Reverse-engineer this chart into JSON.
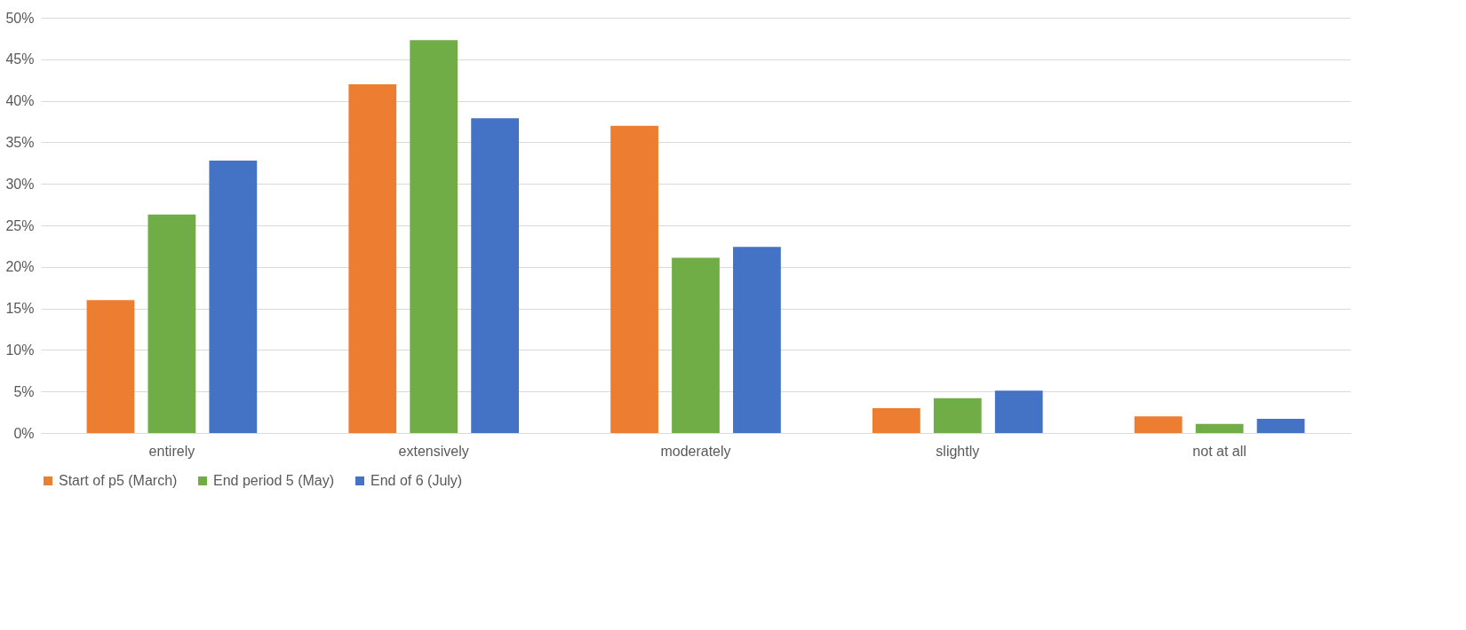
{
  "chart_data": {
    "type": "bar",
    "categories": [
      "entirely",
      "extensively",
      "moderately",
      "slightly",
      "not at all"
    ],
    "series": [
      {
        "name": "Start of p5 (March)",
        "color": "#ed7d31",
        "values": [
          16.0,
          42.0,
          37.0,
          3.0,
          2.0
        ]
      },
      {
        "name": "End period 5 (May)",
        "color": "#70ad47",
        "values": [
          26.3,
          47.3,
          21.1,
          4.2,
          1.1
        ]
      },
      {
        "name": "End of 6 (July)",
        "color": "#4472c4",
        "values": [
          32.8,
          37.9,
          22.4,
          5.1,
          1.7
        ]
      }
    ],
    "ylim": [
      0,
      50
    ],
    "yticks": [
      {
        "value": 0,
        "label": "0%"
      },
      {
        "value": 5,
        "label": "5%"
      },
      {
        "value": 10,
        "label": "10%"
      },
      {
        "value": 15,
        "label": "15%"
      },
      {
        "value": 20,
        "label": "20%"
      },
      {
        "value": 25,
        "label": "25%"
      },
      {
        "value": 30,
        "label": "30%"
      },
      {
        "value": 35,
        "label": "35%"
      },
      {
        "value": 40,
        "label": "40%"
      },
      {
        "value": 45,
        "label": "45%"
      },
      {
        "value": 50,
        "label": "50%"
      }
    ],
    "grid": "y",
    "legend": "bottom"
  }
}
